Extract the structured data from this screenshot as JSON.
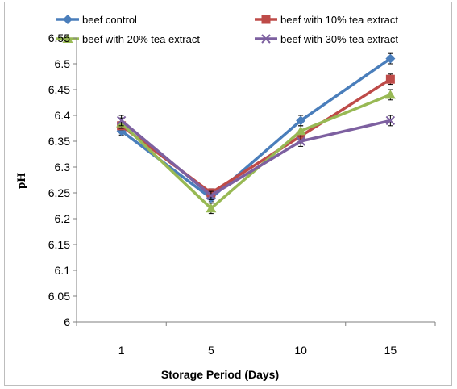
{
  "chart_data": {
    "type": "line",
    "categories": [
      "1",
      "5",
      "10",
      "15"
    ],
    "xlabel": "Storage Period (Days)",
    "ylabel": "pH",
    "ylim": [
      6,
      6.55
    ],
    "ytick_step": 0.05,
    "ytick_labels": [
      "6",
      "6.05",
      "6.1",
      "6.15",
      "6.2",
      "6.25",
      "6.3",
      "6.35",
      "6.4",
      "6.45",
      "6.5",
      "6.55"
    ],
    "grid": false,
    "legend_position": "top",
    "series": [
      {
        "name": "beef control",
        "color": "#4a7ebb",
        "marker": "diamond",
        "values": [
          6.37,
          6.24,
          6.39,
          6.51
        ],
        "error": [
          0.008,
          0.007,
          0.01,
          0.01
        ]
      },
      {
        "name": "beef with 10% tea extract",
        "color": "#be4b48",
        "marker": "square",
        "values": [
          6.38,
          6.25,
          6.36,
          6.47
        ],
        "error": [
          0.008,
          0.008,
          0.01,
          0.01
        ]
      },
      {
        "name": "beef with 20% tea extract",
        "color": "#98b954",
        "marker": "triangle",
        "values": [
          6.385,
          6.22,
          6.37,
          6.44
        ],
        "error": [
          0.01,
          0.01,
          0.01,
          0.01
        ]
      },
      {
        "name": "beef with 30% tea extract",
        "color": "#7d60a0",
        "marker": "x",
        "values": [
          6.39,
          6.245,
          6.35,
          6.39
        ],
        "error": [
          0.01,
          0.008,
          0.01,
          0.01
        ]
      }
    ]
  }
}
